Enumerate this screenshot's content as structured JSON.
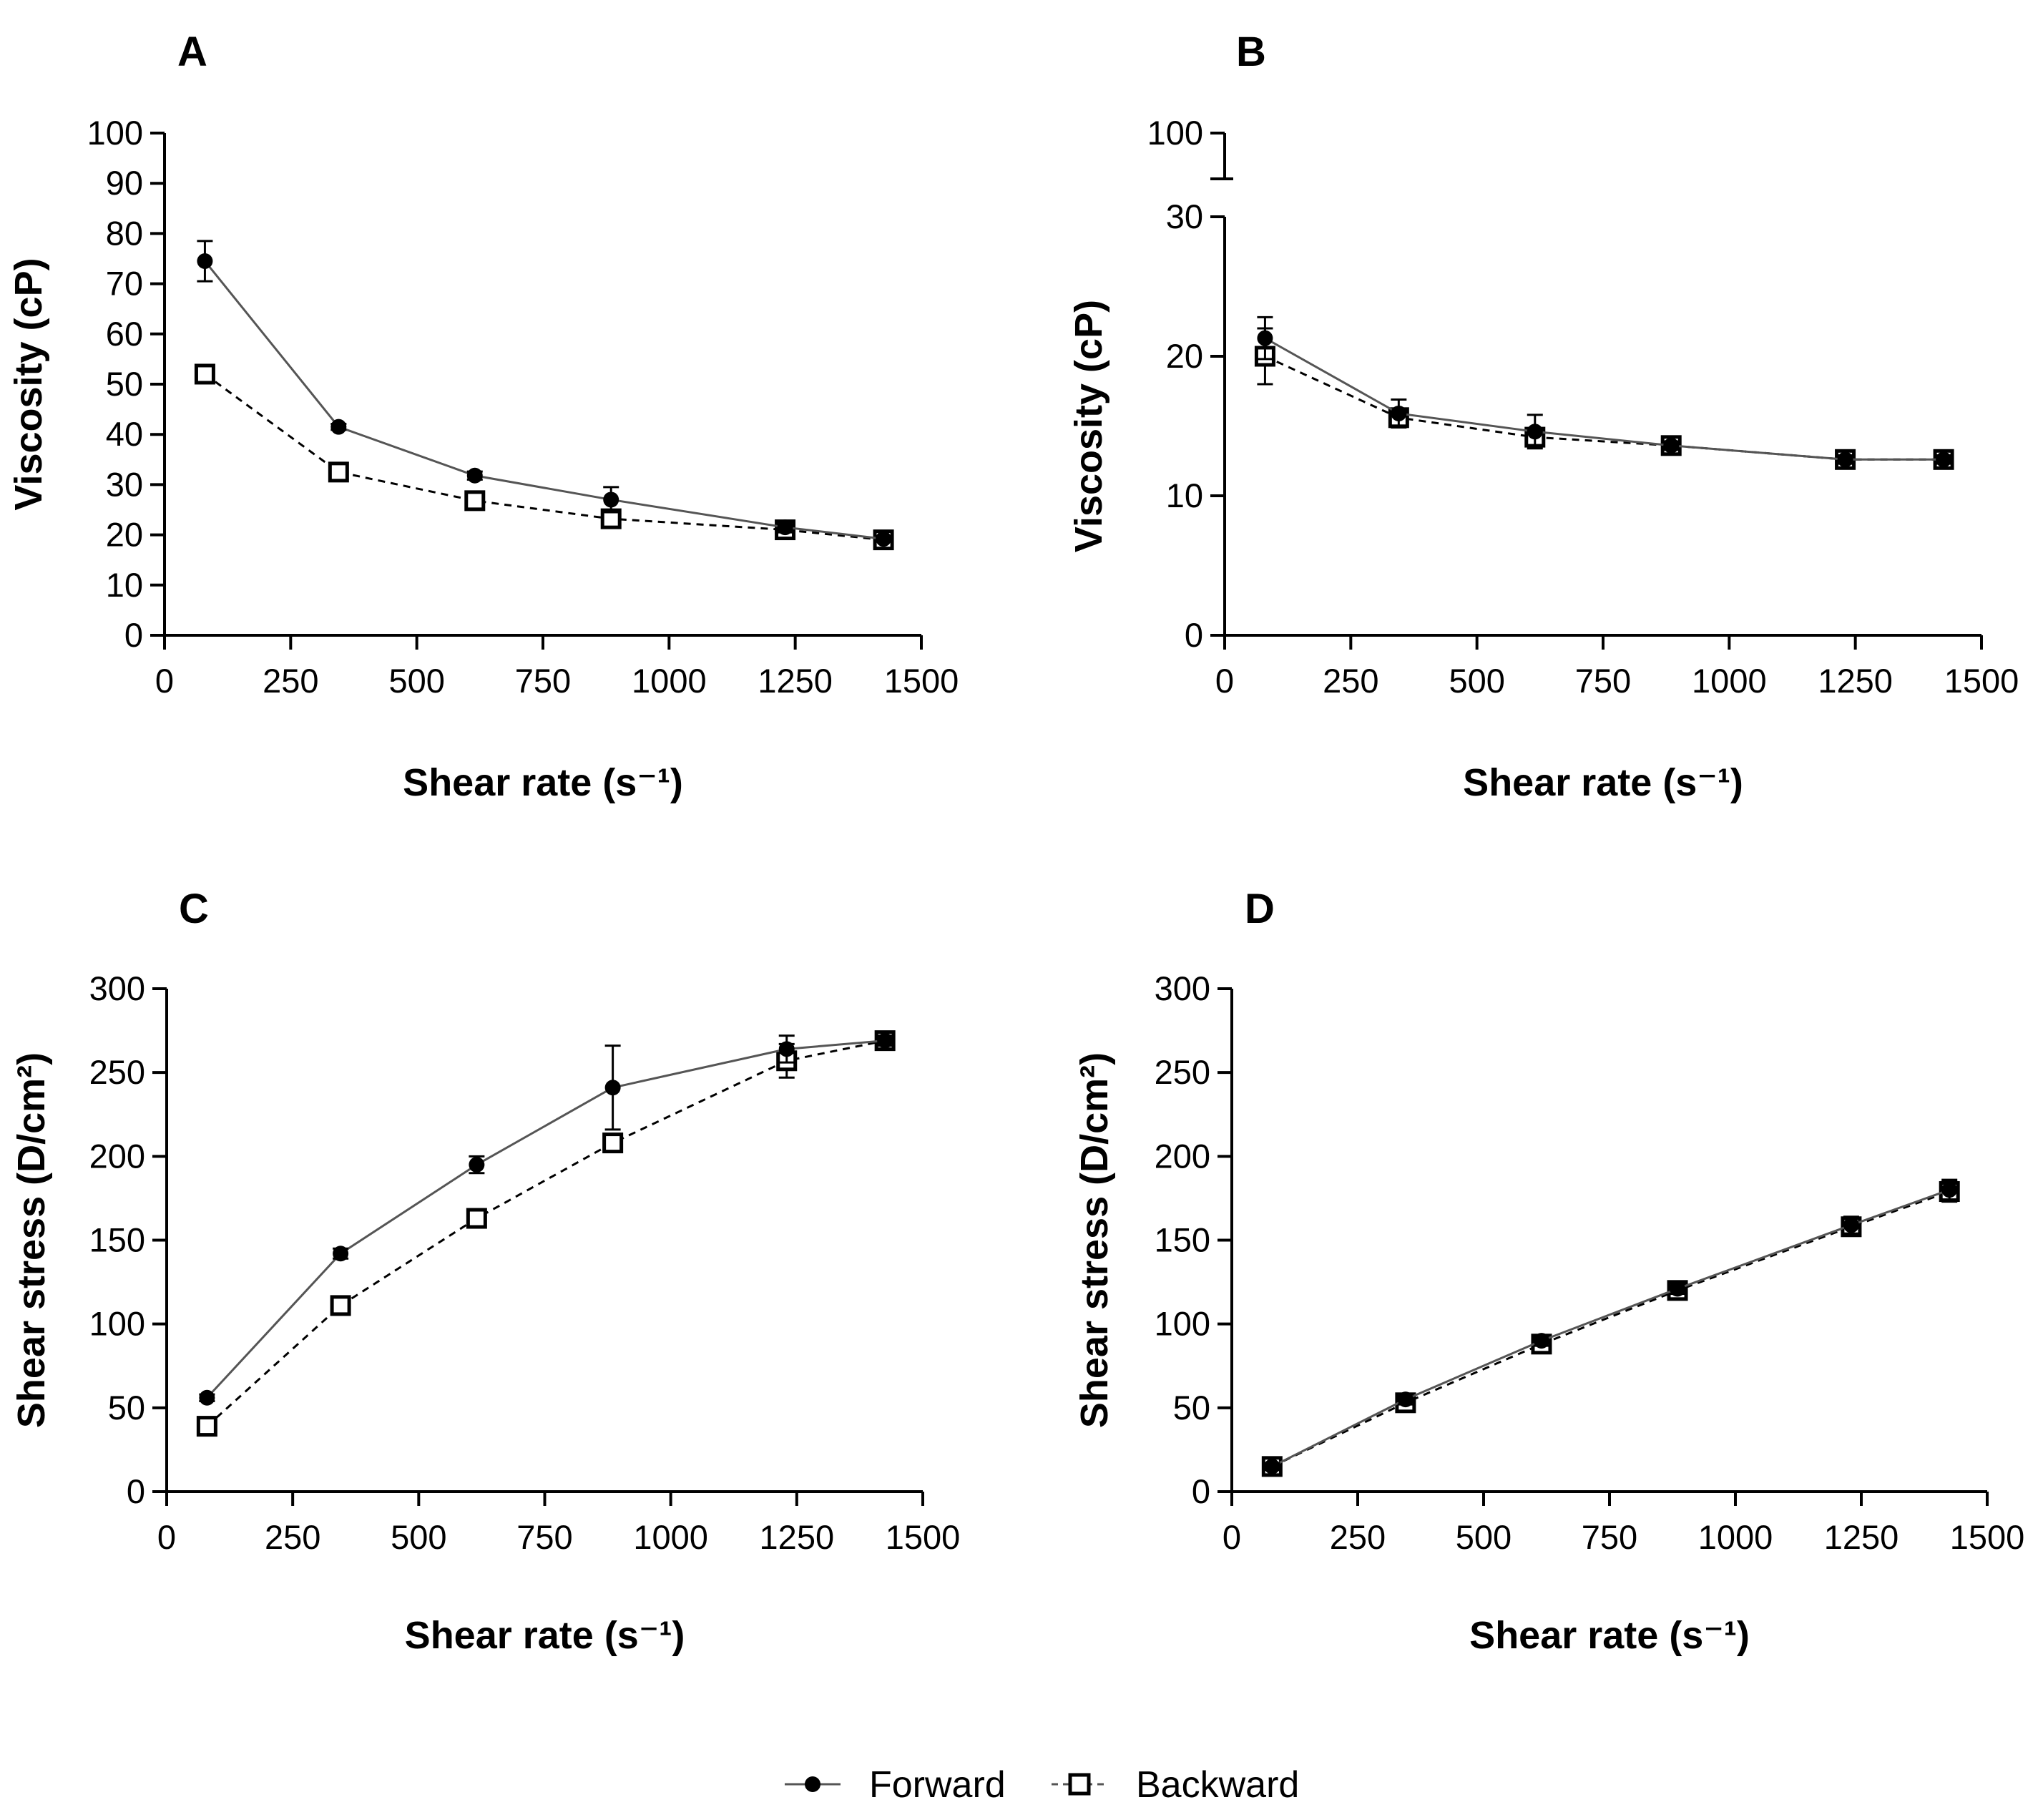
{
  "legend": {
    "forward_label": "Forward",
    "backward_label": "Backward"
  },
  "colors": {
    "line": "#555555",
    "marker": "#000000"
  },
  "chart_data": [
    {
      "panel": "A",
      "type": "line",
      "xlabel": "Shear rate (s⁻¹)",
      "ylabel": "Viscosity (cP)",
      "xlim": [
        0,
        1500
      ],
      "ylim": [
        0,
        100
      ],
      "xticks": [
        "0",
        "250",
        "500",
        "750",
        "1000",
        "1250",
        "1500"
      ],
      "yticks": [
        "0",
        "10",
        "20",
        "30",
        "40",
        "50",
        "60",
        "70",
        "80",
        "90",
        "100"
      ],
      "x": [
        80,
        345,
        615,
        885,
        1230,
        1425
      ],
      "series": [
        {
          "name": "Forward",
          "values": [
            74.5,
            41.5,
            31.8,
            27.0,
            21.5,
            19.2
          ],
          "errors": [
            4.0,
            0.6,
            0.8,
            2.5,
            1.0,
            0.5
          ]
        },
        {
          "name": "Backward",
          "values": [
            52.0,
            32.5,
            26.8,
            23.2,
            21.0,
            19.0
          ],
          "errors": [
            0.8,
            0.8,
            0.8,
            0.8,
            0.8,
            0.5
          ]
        }
      ]
    },
    {
      "panel": "B",
      "type": "line",
      "xlabel": "Shear rate (s⁻¹)",
      "ylabel": "Viscosity (cP)",
      "xlim": [
        0,
        1500
      ],
      "ylim": [
        0,
        30
      ],
      "axis_break": {
        "upper_tick": "100"
      },
      "xticks": [
        "0",
        "250",
        "500",
        "750",
        "1000",
        "1250",
        "1500"
      ],
      "yticks": [
        "0",
        "10",
        "20",
        "30"
      ],
      "x": [
        80,
        345,
        615,
        885,
        1230,
        1425
      ],
      "series": [
        {
          "name": "Forward",
          "values": [
            21.3,
            15.9,
            14.6,
            13.6,
            12.6,
            12.6
          ],
          "errors": [
            1.5,
            1.0,
            1.2,
            0.3,
            0.3,
            0.3
          ]
        },
        {
          "name": "Backward",
          "values": [
            20.0,
            15.6,
            14.2,
            13.6,
            12.6,
            12.6
          ],
          "errors": [
            2.0,
            0.5,
            0.5,
            0.3,
            0.3,
            0.3
          ]
        }
      ]
    },
    {
      "panel": "C",
      "type": "line",
      "xlabel": "Shear rate (s⁻¹)",
      "ylabel": "Shear stress (D/cm²)",
      "xlim": [
        0,
        1500
      ],
      "ylim": [
        0,
        300
      ],
      "xticks": [
        "0",
        "250",
        "500",
        "750",
        "1000",
        "1250",
        "1500"
      ],
      "yticks": [
        "0",
        "50",
        "100",
        "150",
        "200",
        "250",
        "300"
      ],
      "x": [
        80,
        345,
        615,
        885,
        1230,
        1425
      ],
      "series": [
        {
          "name": "Forward",
          "values": [
            56,
            142,
            195,
            241,
            264,
            269
          ],
          "errors": [
            2,
            3,
            5,
            25,
            8,
            3
          ]
        },
        {
          "name": "Backward",
          "values": [
            39,
            111,
            163,
            208,
            257,
            269
          ],
          "errors": [
            2,
            3,
            3,
            5,
            10,
            3
          ]
        }
      ]
    },
    {
      "panel": "D",
      "type": "line",
      "xlabel": "Shear rate (s⁻¹)",
      "ylabel": "Shear stress (D/cm²)",
      "xlim": [
        0,
        1500
      ],
      "ylim": [
        0,
        300
      ],
      "xticks": [
        "0",
        "250",
        "500",
        "750",
        "1000",
        "1250",
        "1500"
      ],
      "yticks": [
        "0",
        "50",
        "100",
        "150",
        "200",
        "250",
        "300"
      ],
      "x": [
        80,
        345,
        615,
        885,
        1230,
        1425
      ],
      "series": [
        {
          "name": "Forward",
          "values": [
            15,
            55,
            90,
            121,
            159,
            180
          ],
          "errors": [
            2,
            3,
            3,
            3,
            5,
            6
          ]
        },
        {
          "name": "Backward",
          "values": [
            15,
            53,
            88,
            120,
            158,
            179
          ],
          "errors": [
            2,
            3,
            3,
            3,
            5,
            6
          ]
        }
      ]
    }
  ]
}
